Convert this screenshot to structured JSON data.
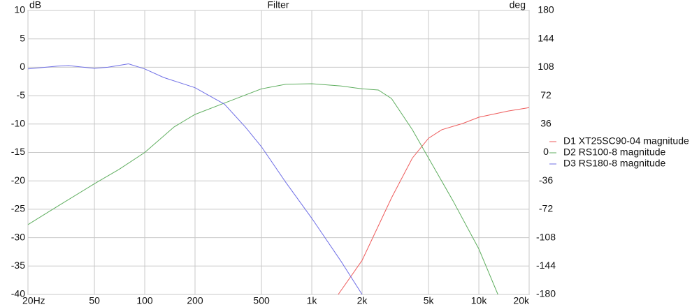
{
  "chart_data": {
    "type": "line",
    "title": "Filter",
    "ylabel": "dB",
    "y2label": "deg",
    "xscale": "log",
    "grid": true,
    "legend": "right",
    "xlim": [
      20,
      20000
    ],
    "xticks": [
      {
        "value": 20,
        "label": "20Hz"
      },
      50,
      100,
      200,
      500,
      {
        "value": 1000,
        "label": "1k"
      },
      {
        "value": 2000,
        "label": "2k"
      },
      {
        "value": 5000,
        "label": "5k"
      },
      {
        "value": 10000,
        "label": "10k"
      },
      {
        "value": 20000,
        "label": "20k"
      }
    ],
    "ylim": [
      -40,
      10
    ],
    "yticks": [
      10,
      5,
      0,
      -5,
      -10,
      -15,
      -20,
      -25,
      -30,
      -35,
      -40
    ],
    "y2lim": [
      -180,
      180
    ],
    "y2ticks": [
      180,
      144,
      108,
      72,
      36,
      0,
      -36,
      -72,
      -108,
      -144,
      -180
    ],
    "series": [
      {
        "name": "D1 XT25SC90-04 magnitude",
        "color": "#ee5b5b",
        "x": [
          1440,
          2000,
          3000,
          4000,
          5000,
          6000,
          8000,
          10000,
          15000,
          20000
        ],
        "values": [
          -40,
          -34,
          -23,
          -16,
          -12.5,
          -11,
          -9.9,
          -8.8,
          -7.7,
          -7.1
        ]
      },
      {
        "name": "D2 RS100-8 magnitude",
        "color": "#5fae5f",
        "x": [
          20,
          30,
          50,
          70,
          100,
          150,
          200,
          300,
          500,
          700,
          1000,
          1500,
          2000,
          2500,
          3000,
          4000,
          5000,
          7000,
          10000,
          13000
        ],
        "values": [
          -27.7,
          -24.5,
          -20.5,
          -18,
          -15,
          -10.5,
          -8.3,
          -6.3,
          -3.8,
          -3,
          -2.9,
          -3.3,
          -3.8,
          -4,
          -5.5,
          -11,
          -16,
          -23.5,
          -32,
          -40
        ]
      },
      {
        "name": "D3 RS180-8 magnitude",
        "color": "#6f6fe6",
        "x": [
          20,
          30,
          35,
          50,
          60,
          80,
          100,
          130,
          200,
          300,
          400,
          500,
          700,
          1000,
          1500,
          2000
        ],
        "values": [
          -0.3,
          0.2,
          0.3,
          -0.2,
          0,
          0.6,
          -0.3,
          -1.8,
          -3.6,
          -6.5,
          -10.5,
          -14,
          -20.3,
          -26.6,
          -34.2,
          -40
        ]
      }
    ]
  }
}
